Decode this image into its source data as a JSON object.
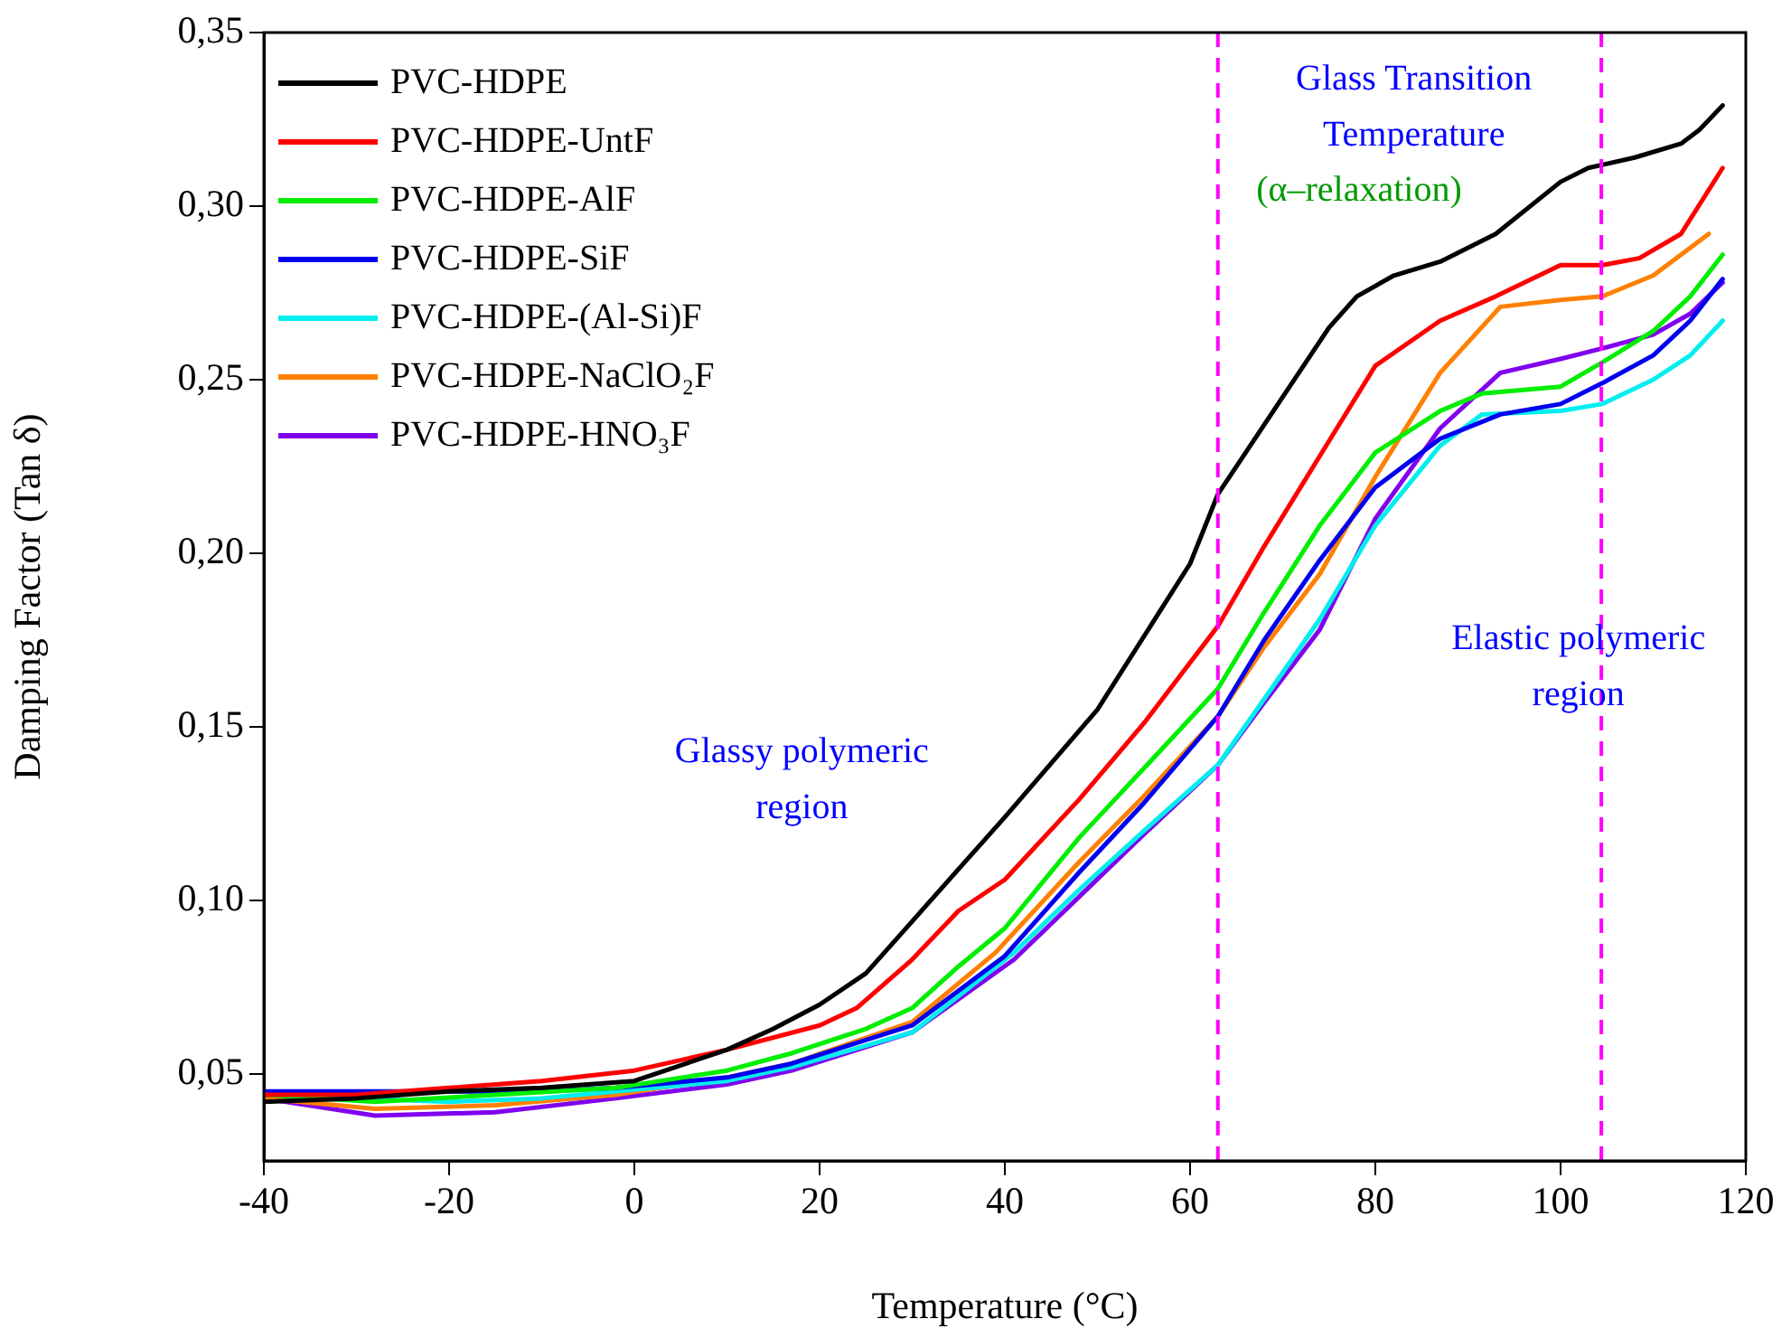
{
  "chart_data": {
    "type": "line",
    "xlabel": "Temperature (°C)",
    "ylabel": "Damping Factor (Tan δ)",
    "xlim": [
      -40,
      120
    ],
    "xticks": [
      -40,
      -20,
      0,
      20,
      40,
      60,
      80,
      100,
      120
    ],
    "ylim": [
      0.025,
      0.35
    ],
    "yticks": [
      {
        "value": 0.05,
        "label": "0,05"
      },
      {
        "value": 0.1,
        "label": "0,10"
      },
      {
        "value": 0.15,
        "label": "0,15"
      },
      {
        "value": 0.2,
        "label": "0,20"
      },
      {
        "value": 0.25,
        "label": "0,25"
      },
      {
        "value": 0.3,
        "label": "0,30"
      },
      {
        "value": 0.35,
        "label": "0,35"
      }
    ],
    "grid": false,
    "legend": "top left",
    "marker": "none",
    "line_style": "solid",
    "series": [
      {
        "name": "PVC-HDPE",
        "color": "#000000",
        "x": [
          -40,
          -30,
          -20,
          -10,
          0,
          10,
          15,
          20,
          25,
          30,
          35,
          40,
          50,
          60,
          63,
          70,
          75,
          78,
          82,
          87,
          93,
          100,
          103,
          108,
          113,
          115,
          117.5
        ],
        "values": [
          0.042,
          0.043,
          0.045,
          0.046,
          0.048,
          0.057,
          0.063,
          0.07,
          0.079,
          0.094,
          0.109,
          0.124,
          0.155,
          0.197,
          0.217,
          0.245,
          0.265,
          0.274,
          0.28,
          0.284,
          0.292,
          0.307,
          0.311,
          0.314,
          0.318,
          0.322,
          0.329
        ]
      },
      {
        "name": "PVC-HDPE-UntF",
        "color": "#ff0000",
        "x": [
          -40,
          -30,
          -20,
          -10,
          0,
          10,
          20,
          24,
          30,
          35,
          40,
          48,
          55,
          63,
          68,
          74,
          80,
          87,
          93,
          100,
          104.5,
          108.5,
          113,
          117.5
        ],
        "values": [
          0.044,
          0.044,
          0.046,
          0.048,
          0.051,
          0.057,
          0.064,
          0.069,
          0.083,
          0.097,
          0.106,
          0.129,
          0.151,
          0.179,
          0.202,
          0.228,
          0.254,
          0.267,
          0.274,
          0.283,
          0.283,
          0.285,
          0.292,
          0.311
        ]
      },
      {
        "name": "PVC-HDPE-AlF",
        "color": "#00ee00",
        "x": [
          -40,
          -28,
          -15,
          -2,
          10,
          17,
          25,
          30,
          35,
          40,
          48,
          55,
          63,
          68,
          74,
          80,
          87,
          91.5,
          100,
          104.5,
          110,
          114,
          117.5
        ],
        "values": [
          0.044,
          0.042,
          0.044,
          0.046,
          0.051,
          0.056,
          0.063,
          0.069,
          0.081,
          0.092,
          0.118,
          0.138,
          0.161,
          0.183,
          0.208,
          0.229,
          0.241,
          0.246,
          0.248,
          0.255,
          0.264,
          0.274,
          0.286
        ]
      },
      {
        "name": "PVC-HDPE-SiF",
        "color": "#0000ee",
        "x": [
          -40,
          -30,
          -20,
          -10,
          -2,
          10,
          17,
          30,
          40,
          48,
          55,
          63,
          68,
          74,
          80,
          87,
          93.5,
          100,
          104.5,
          110,
          114,
          117.5
        ],
        "values": [
          0.045,
          0.045,
          0.045,
          0.045,
          0.046,
          0.049,
          0.053,
          0.064,
          0.084,
          0.108,
          0.128,
          0.153,
          0.175,
          0.198,
          0.219,
          0.233,
          0.24,
          0.243,
          0.249,
          0.257,
          0.267,
          0.279
        ]
      },
      {
        "name": "PVC-HDPE-(Al-Si)F",
        "color": "#00eeee",
        "x": [
          -40,
          -30,
          -20,
          -10,
          -2,
          10,
          17,
          30,
          41,
          48,
          55,
          63,
          68,
          74,
          80,
          87,
          91.5,
          100,
          104.5,
          110,
          114,
          117.5
        ],
        "values": [
          0.045,
          0.043,
          0.042,
          0.043,
          0.045,
          0.048,
          0.052,
          0.062,
          0.085,
          0.103,
          0.12,
          0.139,
          0.158,
          0.181,
          0.208,
          0.231,
          0.24,
          0.241,
          0.243,
          0.25,
          0.257,
          0.267
        ]
      },
      {
        "name": "PVC-HDPE-NaClO₂F",
        "color": "#ff8000",
        "x": [
          -40,
          -28,
          -15,
          -2,
          10,
          17,
          30,
          39,
          48,
          55,
          63,
          68,
          74,
          80,
          87,
          93.5,
          100,
          104.5,
          110,
          116
        ],
        "values": [
          0.043,
          0.04,
          0.041,
          0.044,
          0.049,
          0.053,
          0.065,
          0.085,
          0.111,
          0.13,
          0.153,
          0.173,
          0.194,
          0.222,
          0.252,
          0.271,
          0.273,
          0.274,
          0.28,
          0.292
        ]
      },
      {
        "name": "PVC-HDPE-HNO₃F",
        "color": "#8000ee",
        "x": [
          -40,
          -28,
          -15,
          -2,
          10,
          17,
          30,
          41,
          48,
          55,
          63,
          68,
          74,
          80,
          87,
          93.5,
          100,
          104.5,
          110,
          114,
          117.5
        ],
        "values": [
          0.043,
          0.038,
          0.039,
          0.043,
          0.047,
          0.051,
          0.062,
          0.083,
          0.101,
          0.119,
          0.139,
          0.157,
          0.178,
          0.21,
          0.236,
          0.252,
          0.256,
          0.259,
          0.263,
          0.269,
          0.278
        ]
      }
    ],
    "ref_lines": [
      {
        "axis": "x",
        "value": 63,
        "color": "#ff00ff",
        "line_style": "dashed"
      },
      {
        "axis": "x",
        "value": 104.4,
        "color": "#ff00ff",
        "line_style": "dashed"
      }
    ],
    "annotations": [
      "Glass Transition Temperature",
      "(α–relaxation)",
      "Glassy polymeric region",
      "Elastic polymeric region"
    ]
  }
}
